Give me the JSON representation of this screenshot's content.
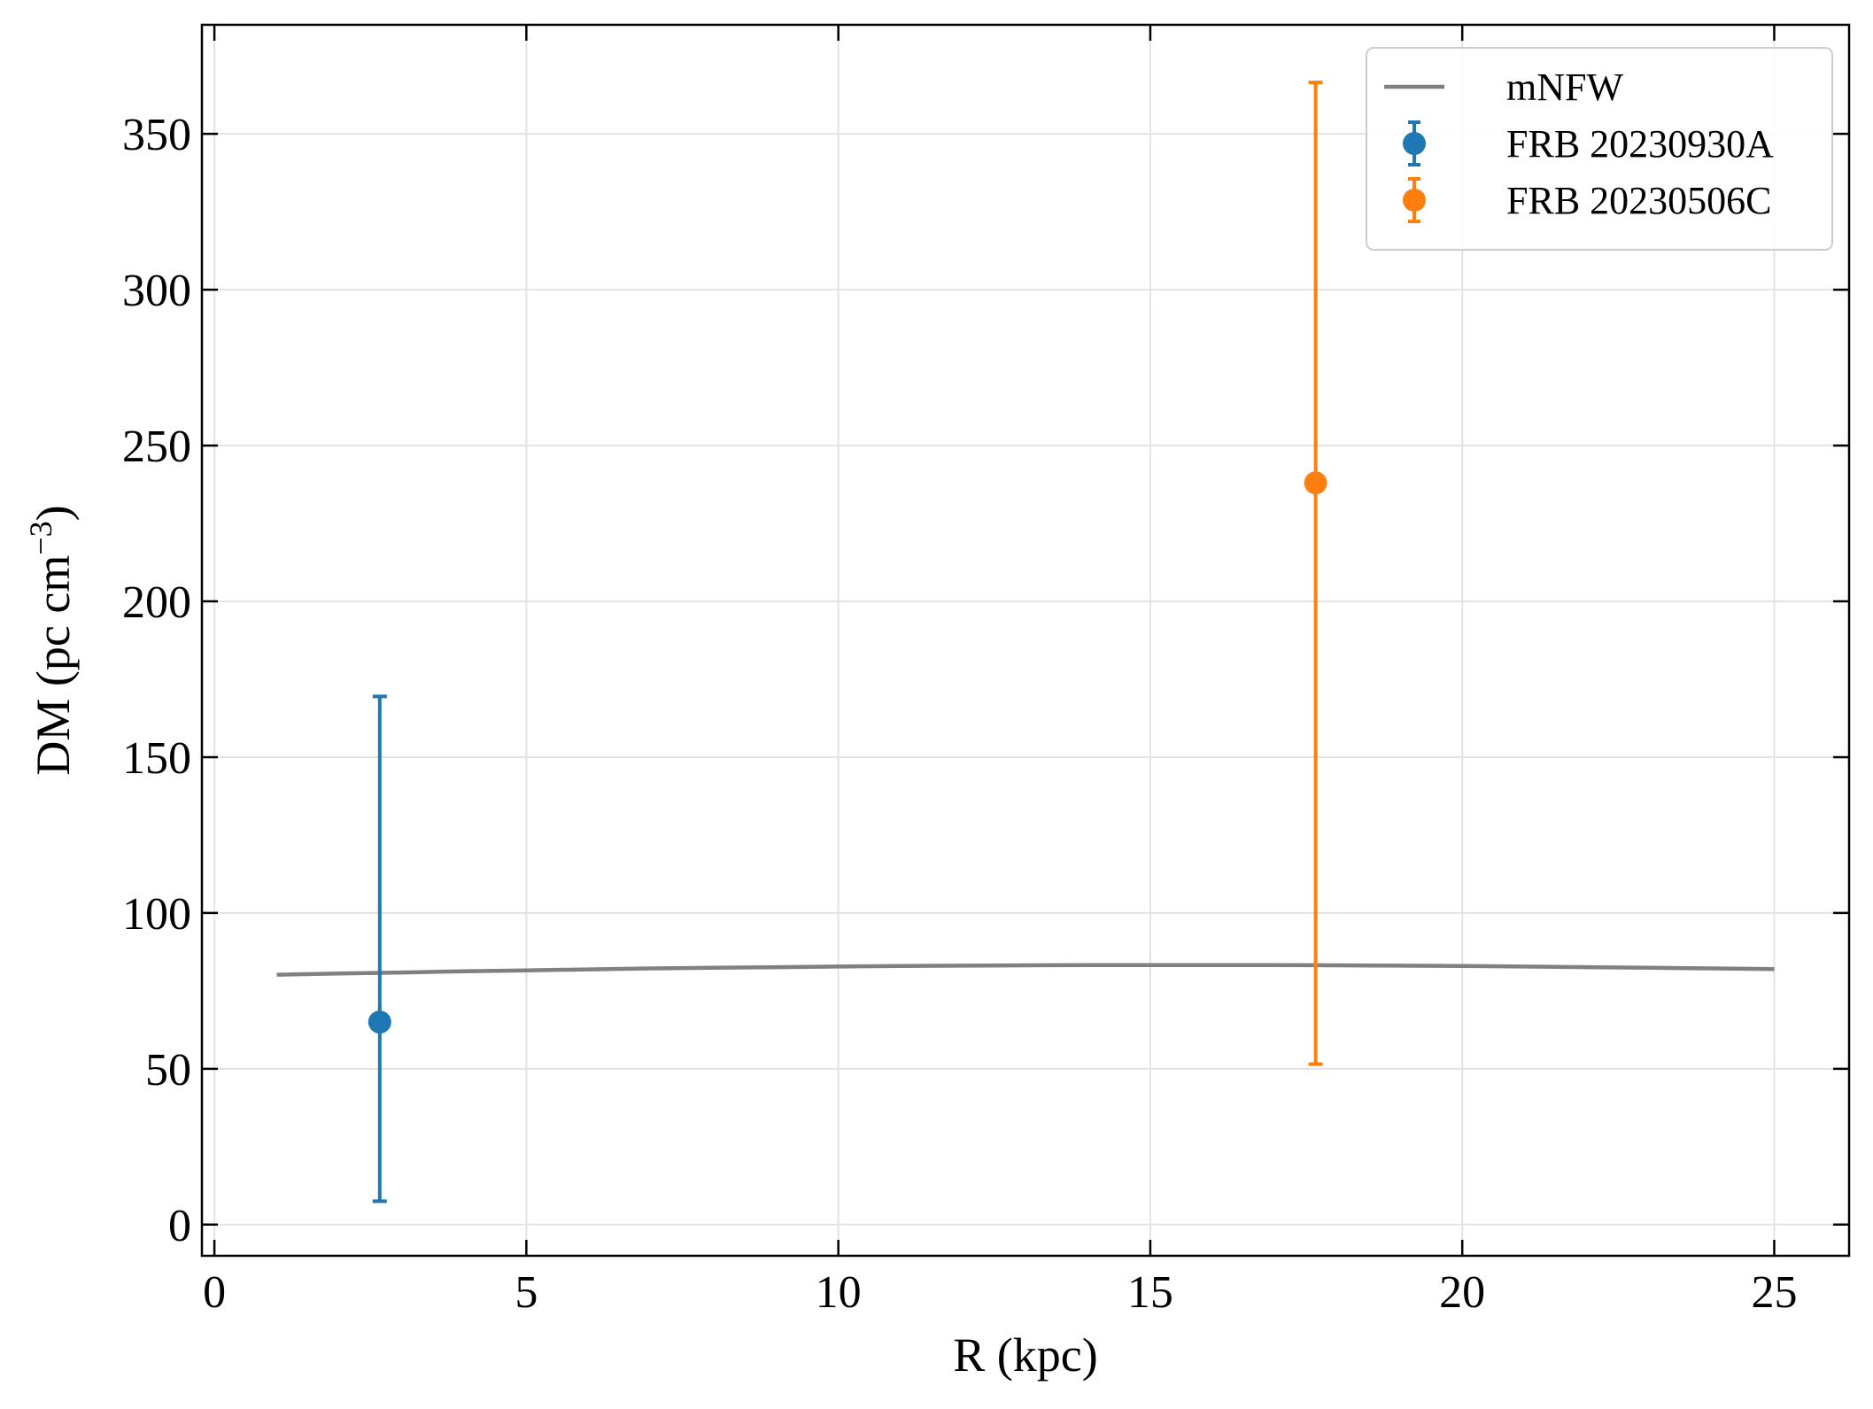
{
  "chart_data": {
    "type": "scatter",
    "xlabel": "R (kpc)",
    "ylabel": "DM (pc cm",
    "ylabel_sup": "−3",
    "ylabel_close": ")",
    "xlim": [
      -0.2,
      26.2
    ],
    "ylim": [
      -10,
      385
    ],
    "xticks": [
      0,
      5,
      10,
      15,
      20,
      25
    ],
    "yticks": [
      0,
      50,
      100,
      150,
      200,
      250,
      300,
      350
    ],
    "grid": true,
    "legend_position": "top-right",
    "series": [
      {
        "name": "mNFW",
        "kind": "line",
        "color": "#808080",
        "x": [
          1,
          2,
          3,
          4,
          5,
          6,
          7,
          8,
          9,
          10,
          11,
          12,
          13,
          14,
          15,
          16,
          17,
          18,
          19,
          20,
          21,
          22,
          23,
          24,
          25
        ],
        "y": [
          80.2,
          80.6,
          80.9,
          81.3,
          81.6,
          81.9,
          82.2,
          82.4,
          82.6,
          82.8,
          83.0,
          83.1,
          83.2,
          83.3,
          83.3,
          83.3,
          83.3,
          83.2,
          83.1,
          83.0,
          82.8,
          82.6,
          82.4,
          82.2,
          82.0
        ]
      },
      {
        "name": "FRB 20230930A",
        "kind": "errorbar",
        "color": "#1f77b4",
        "x": [
          2.65
        ],
        "y": [
          65
        ],
        "yerr_low": [
          57.5
        ],
        "yerr_high": [
          104.5
        ]
      },
      {
        "name": "FRB 20230506C",
        "kind": "errorbar",
        "color": "#ff7f0e",
        "x": [
          17.65
        ],
        "y": [
          238
        ],
        "yerr_low": [
          186.5
        ],
        "yerr_high": [
          128.5
        ]
      }
    ]
  }
}
